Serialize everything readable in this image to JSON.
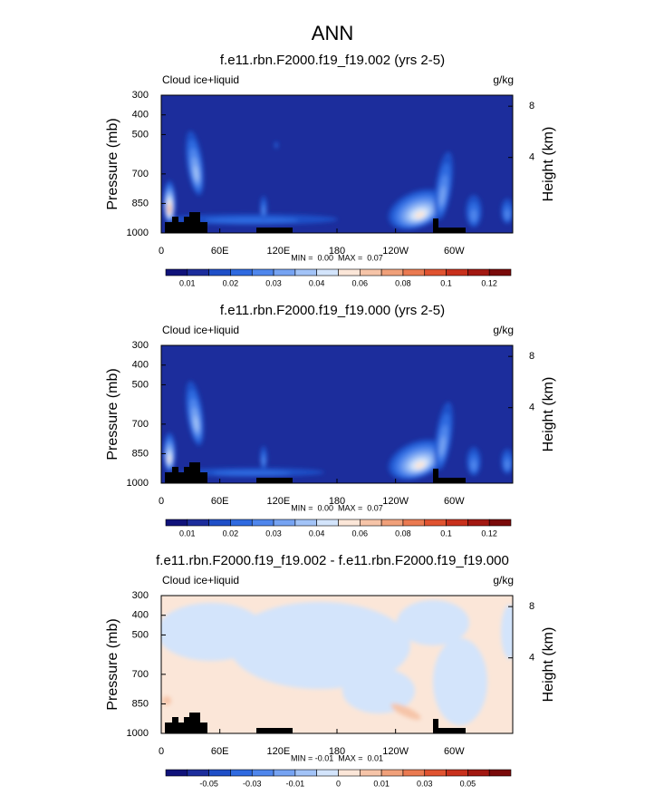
{
  "title": "ANN",
  "chart_data": [
    {
      "type": "contour",
      "title": "f.e11.rbn.F2000.f19_f19.002 (yrs 2-5)",
      "label_left": "Cloud ice+liquid",
      "label_right": "g/kg",
      "ylabel": "Pressure (mb)",
      "y2label": "Height (km)",
      "xlim": [
        0,
        360
      ],
      "xticks": [
        0,
        {
          "value": 60,
          "label": "60E"
        },
        {
          "value": 120,
          "label": "120E"
        },
        180,
        {
          "value": 240,
          "label": "120W"
        },
        {
          "value": 300,
          "label": "60W"
        }
      ],
      "ylim": [
        1000,
        300
      ],
      "yticks": [
        300,
        400,
        500,
        700,
        850,
        1000
      ],
      "y2ticks": [
        8,
        4
      ],
      "stats": "MIN =  0.00  MAX =  0.07",
      "colorbar": {
        "ticks": [
          0.01,
          0.02,
          0.03,
          0.04,
          0.06,
          0.08,
          0.1,
          0.12
        ],
        "colors": [
          "#10127a",
          "#1c2d9c",
          "#1f4fc7",
          "#2f6ae0",
          "#4f86ec",
          "#76a3f2",
          "#a2c3f7",
          "#d3e4fb",
          "#fbe6d8",
          "#f6c4a8",
          "#f0a07a",
          "#ea7a51",
          "#e05330",
          "#c8301c",
          "#a21811",
          "#7a0a0a"
        ]
      }
    },
    {
      "type": "contour",
      "title": "f.e11.rbn.F2000.f19_f19.000 (yrs 2-5)",
      "label_left": "Cloud ice+liquid",
      "label_right": "g/kg",
      "ylabel": "Pressure (mb)",
      "y2label": "Height (km)",
      "xlim": [
        0,
        360
      ],
      "xticks": [
        0,
        {
          "value": 60,
          "label": "60E"
        },
        {
          "value": 120,
          "label": "120E"
        },
        180,
        {
          "value": 240,
          "label": "120W"
        },
        {
          "value": 300,
          "label": "60W"
        }
      ],
      "ylim": [
        1000,
        300
      ],
      "yticks": [
        300,
        400,
        500,
        700,
        850,
        1000
      ],
      "y2ticks": [
        8,
        4
      ],
      "stats": "MIN =  0.00  MAX =  0.07",
      "colorbar": {
        "ticks": [
          0.01,
          0.02,
          0.03,
          0.04,
          0.06,
          0.08,
          0.1,
          0.12
        ],
        "colors": [
          "#10127a",
          "#1c2d9c",
          "#1f4fc7",
          "#2f6ae0",
          "#4f86ec",
          "#76a3f2",
          "#a2c3f7",
          "#d3e4fb",
          "#fbe6d8",
          "#f6c4a8",
          "#f0a07a",
          "#ea7a51",
          "#e05330",
          "#c8301c",
          "#a21811",
          "#7a0a0a"
        ]
      }
    },
    {
      "type": "contour",
      "title": "f.e11.rbn.F2000.f19_f19.002 - f.e11.rbn.F2000.f19_f19.000",
      "label_left": "Cloud ice+liquid",
      "label_right": "g/kg",
      "ylabel": "Pressure (mb)",
      "y2label": "Height (km)",
      "xlim": [
        0,
        360
      ],
      "xticks": [
        0,
        {
          "value": 60,
          "label": "60E"
        },
        {
          "value": 120,
          "label": "120E"
        },
        180,
        {
          "value": 240,
          "label": "120W"
        },
        {
          "value": 300,
          "label": "60W"
        }
      ],
      "ylim": [
        1000,
        300
      ],
      "yticks": [
        300,
        400,
        500,
        700,
        850,
        1000
      ],
      "y2ticks": [
        8,
        4
      ],
      "stats": "MIN = -0.01  MAX =  0.01",
      "colorbar": {
        "ticks": [
          -0.05,
          -0.03,
          -0.01,
          0,
          0.01,
          0.03,
          0.05
        ],
        "colors": [
          "#10127a",
          "#1c2d9c",
          "#1f4fc7",
          "#2f6ae0",
          "#4f86ec",
          "#76a3f2",
          "#a2c3f7",
          "#d3e4fb",
          "#fbe6d8",
          "#f6c4a8",
          "#f0a07a",
          "#ea7a51",
          "#e05330",
          "#c8301c",
          "#a21811",
          "#7a0a0a"
        ]
      }
    }
  ]
}
